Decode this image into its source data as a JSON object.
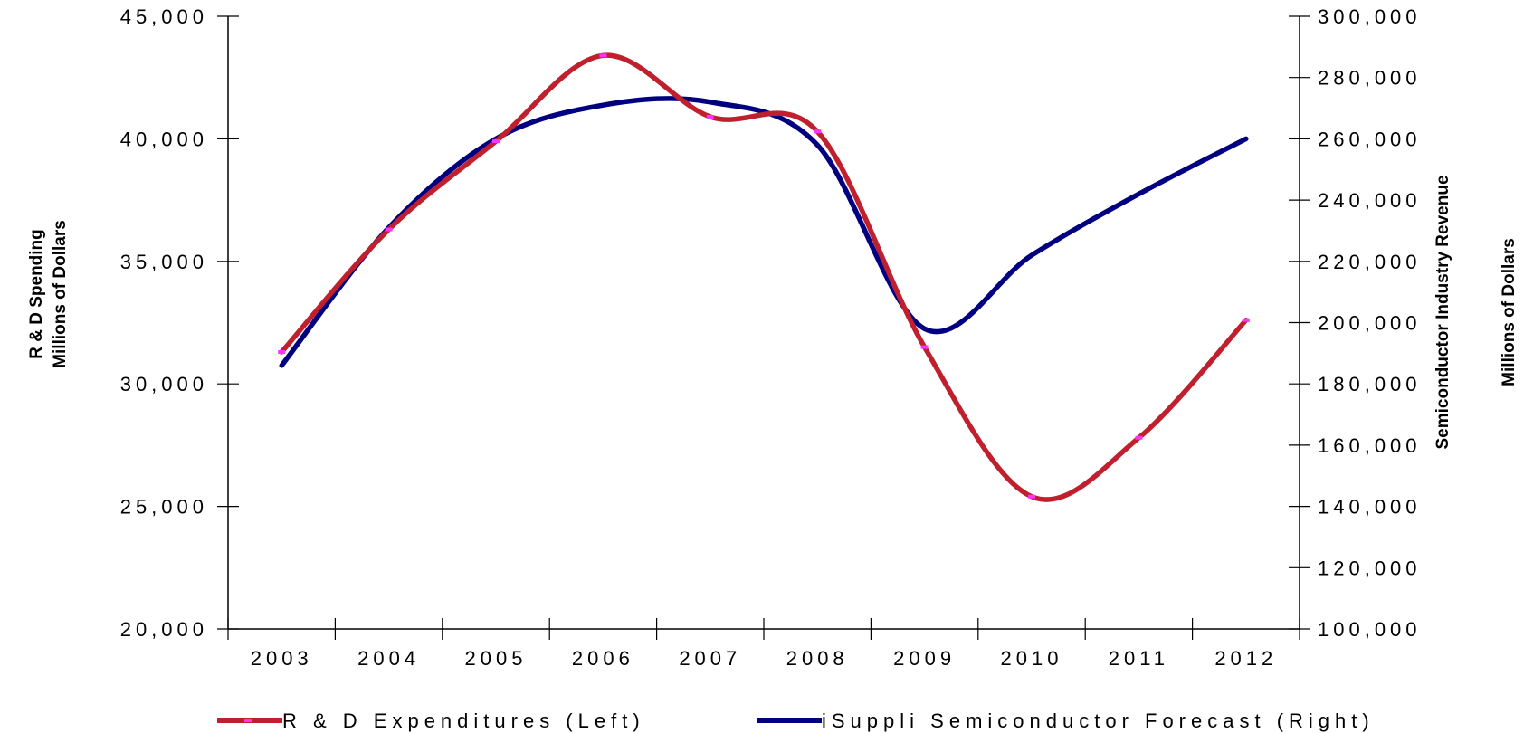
{
  "chart_data": {
    "type": "line",
    "x": [
      "2003",
      "2004",
      "2005",
      "2006",
      "2007",
      "2008",
      "2009",
      "2010",
      "2011",
      "2012"
    ],
    "y_left": {
      "label_line1": "R & D Spending",
      "label_line2": "Millions of Dollars",
      "ylim": [
        20000,
        45000
      ],
      "ticks": [
        "20,000",
        "25,000",
        "30,000",
        "35,000",
        "40,000",
        "45,000"
      ]
    },
    "y_right": {
      "label_line1": "Semiconductor Industry Revenue",
      "label_line2": "Millions of Dollars",
      "ylim": [
        100000,
        300000
      ],
      "ticks": [
        "100,000",
        "120,000",
        "140,000",
        "160,000",
        "180,000",
        "200,000",
        "220,000",
        "240,000",
        "260,000",
        "280,000",
        "300,000"
      ]
    },
    "series": [
      {
        "name": "R & D Expenditures (Left)",
        "axis": "left",
        "color": "#c0202e",
        "marker_color": "#ff33ff",
        "values": [
          31300,
          36300,
          39900,
          43400,
          40900,
          40300,
          31500,
          25400,
          27800,
          32600
        ]
      },
      {
        "name": "iSuppli Semiconductor Forecast (Right)",
        "axis": "right",
        "color": "#000080",
        "values": [
          186000,
          231000,
          260000,
          271000,
          272000,
          258000,
          198000,
          222000,
          242000,
          260000
        ]
      }
    ],
    "grid": false,
    "legend_position": "bottom"
  }
}
